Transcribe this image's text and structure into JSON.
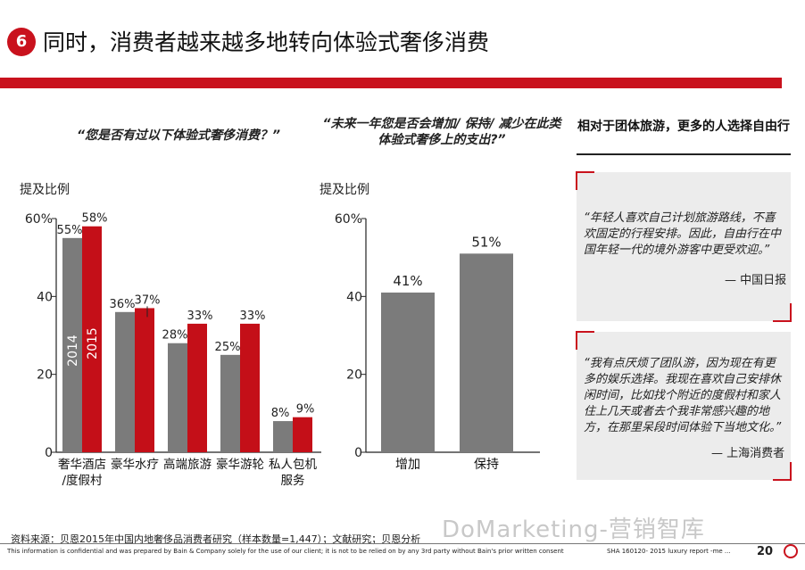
{
  "header": {
    "badge": "6",
    "title": "同时，消费者越来越多地转向体验式奢侈消费"
  },
  "colors": {
    "accent": "#c9121d",
    "gray_bar": "#7b7b7b",
    "red_bar": "#c40f18"
  },
  "chart_data": [
    {
      "type": "bar",
      "title": "“您是否有过以下体验式奢侈消费？”",
      "ylabel": "提及比例",
      "ylim": [
        0,
        60
      ],
      "yticks": [
        "0",
        "20",
        "40",
        "60%"
      ],
      "categories": [
        "奢华酒店/度假村",
        "豪华水疗",
        "高端旅游",
        "豪华游轮",
        "私人包机服务"
      ],
      "category_lines": [
        [
          "奢华酒店",
          "/度假村"
        ],
        [
          "豪华水疗"
        ],
        [
          "高端旅游"
        ],
        [
          "豪华游轮"
        ],
        [
          "私人包机",
          "服务"
        ]
      ],
      "series": [
        {
          "name": "2014",
          "values": [
            55,
            36,
            28,
            25,
            8
          ],
          "labels": [
            "55%",
            "36%",
            "28%",
            "25%",
            "8%"
          ]
        },
        {
          "name": "2015",
          "values": [
            58,
            37,
            33,
            33,
            9
          ],
          "labels": [
            "58%",
            "37%",
            "33%",
            "33%",
            "9%"
          ]
        }
      ]
    },
    {
      "type": "bar",
      "title": "“未来一年您是否会增加/ 保持/ 减少在此类体验式奢侈上的支出?”",
      "ylabel": "提及比例",
      "ylim": [
        0,
        60
      ],
      "yticks": [
        "0",
        "20",
        "40",
        "60%"
      ],
      "categories": [
        "增加",
        "保持"
      ],
      "values": [
        41,
        51
      ],
      "labels": [
        "41%",
        "51%"
      ]
    }
  ],
  "right_panel": {
    "heading": "相对于团体旅游，更多的人选择自由行",
    "quotes": [
      {
        "text": "“年轻人喜欢自己计划旅游路线，不喜欢固定的行程安排。因此，自由行在中国年轻一代的境外游客中更受欢迎。”",
        "source": "— 中国日报"
      },
      {
        "text": "“我有点厌烦了团队游，因为现在有更多的娱乐选择。我现在喜欢自己安排休闲时间，比如找个附近的度假村和家人住上几天或者去个我非常感兴趣的地方，在那里呆段时间体验下当地文化。”",
        "source": "— 上海消费者"
      }
    ]
  },
  "footer": {
    "source": "资料来源：贝恩2015年中国内地奢侈品消费者研究（样本数量=1,447）；文献研究；贝恩分析",
    "confidential": "This information is confidential and was prepared by Bain & Company solely for the use of our client; it is not to be relied on by any 3rd party without Bain's prior written consent",
    "doc_ref": "SHA      160120- 2015 luxury report -me ...",
    "page": "20",
    "watermark": "DoMarketing-营销智库"
  }
}
